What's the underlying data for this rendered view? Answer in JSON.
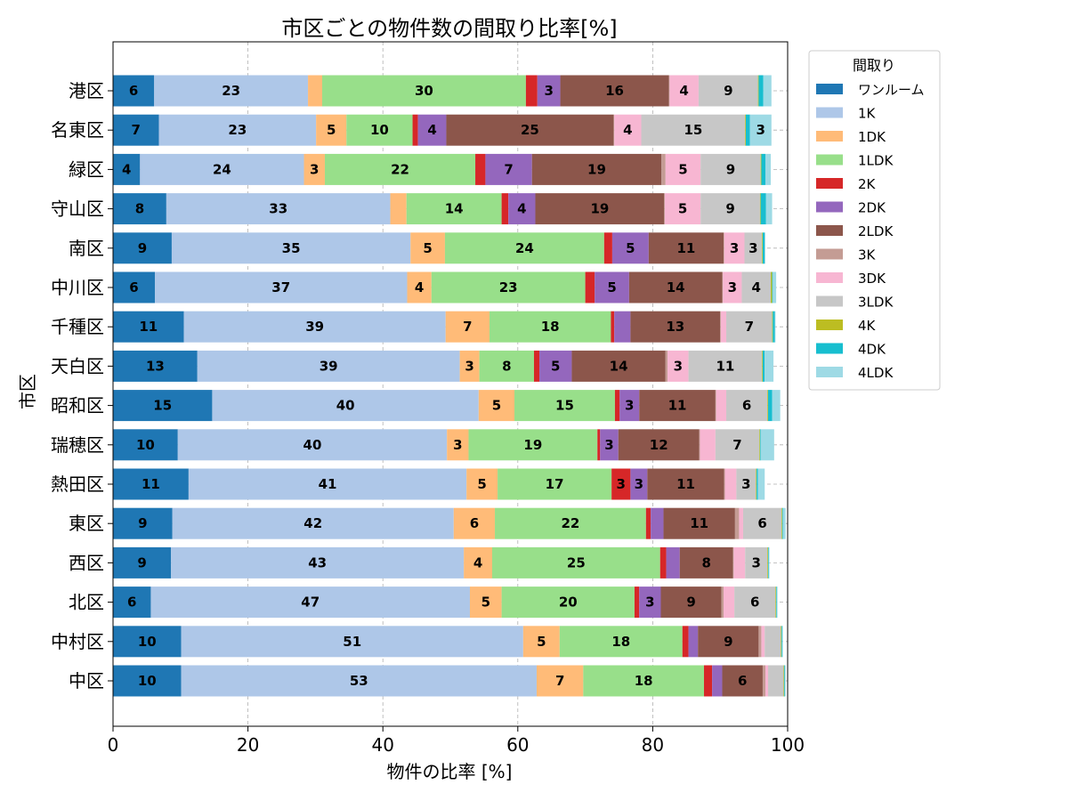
{
  "chart_data": {
    "type": "bar",
    "orientation": "horizontal",
    "stacked": true,
    "title": "市区ごとの物件数の間取り比率[%]",
    "xlabel": "物件の比率 [%]",
    "ylabel": "市区",
    "xlim": [
      0,
      100
    ],
    "x_ticks": [
      "0",
      "20",
      "40",
      "60",
      "80",
      "100"
    ],
    "grid": true,
    "legend": {
      "title": "間取り",
      "placement": "upper-right-outside"
    },
    "categories": [
      "港区",
      "名東区",
      "緑区",
      "守山区",
      "南区",
      "中川区",
      "千種区",
      "天白区",
      "昭和区",
      "瑞穂区",
      "熱田区",
      "東区",
      "西区",
      "北区",
      "中村区",
      "中区"
    ],
    "series": [
      {
        "name": "ワンルーム",
        "color": "#1f77b4",
        "values": [
          6.1,
          6.8,
          4.0,
          7.9,
          8.7,
          6.2,
          10.5,
          12.5,
          14.7,
          9.6,
          11.2,
          8.8,
          8.6,
          5.6,
          10.1,
          10.1
        ]
      },
      {
        "name": "1K",
        "color": "#aec7e8",
        "values": [
          22.8,
          23.3,
          24.3,
          33.2,
          35.4,
          37.4,
          38.8,
          38.9,
          39.5,
          39.9,
          41.2,
          41.7,
          43.4,
          47.3,
          50.7,
          52.7
        ]
      },
      {
        "name": "1DK",
        "color": "#ffbb78",
        "values": [
          2.1,
          4.5,
          3.1,
          2.4,
          5.1,
          3.6,
          6.5,
          2.9,
          5.3,
          3.2,
          4.6,
          6.1,
          4.2,
          4.7,
          5.4,
          6.9
        ]
      },
      {
        "name": "1LDK",
        "color": "#98df8a",
        "values": [
          30.2,
          9.8,
          22.3,
          14.1,
          23.6,
          22.8,
          18.0,
          8.1,
          14.9,
          19.1,
          16.9,
          22.4,
          24.9,
          19.7,
          18.2,
          17.9
        ]
      },
      {
        "name": "2K",
        "color": "#d62728",
        "values": [
          1.7,
          0.8,
          1.5,
          1.0,
          1.2,
          1.4,
          0.5,
          0.8,
          0.7,
          0.4,
          2.8,
          0.7,
          0.9,
          0.7,
          0.9,
          1.2
        ]
      },
      {
        "name": "2DK",
        "color": "#9467bd",
        "values": [
          3.4,
          4.2,
          6.9,
          4.0,
          5.4,
          5.1,
          2.4,
          4.8,
          2.9,
          2.7,
          2.5,
          1.9,
          2.0,
          3.2,
          1.4,
          1.5
        ]
      },
      {
        "name": "2LDK",
        "color": "#8c564b",
        "values": [
          16.1,
          24.8,
          19.2,
          19.1,
          11.1,
          13.8,
          13.3,
          13.9,
          11.3,
          12.0,
          11.4,
          10.6,
          7.9,
          9.0,
          9.0,
          6.0
        ]
      },
      {
        "name": "3K",
        "color": "#c49c94",
        "values": [
          0.1,
          0.1,
          0.6,
          0.1,
          0.1,
          0.1,
          0.1,
          0.3,
          0.1,
          0.1,
          0.1,
          0.6,
          0.1,
          0.3,
          0.4,
          0.4
        ]
      },
      {
        "name": "3DK",
        "color": "#f7b6d2",
        "values": [
          4.3,
          4.0,
          5.2,
          5.3,
          3.0,
          2.8,
          0.8,
          3.1,
          1.5,
          2.3,
          1.7,
          0.6,
          1.7,
          1.6,
          0.5,
          0.4
        ]
      },
      {
        "name": "3LDK",
        "color": "#c7c7c7",
        "values": [
          8.8,
          15.4,
          8.9,
          8.8,
          2.6,
          4.3,
          6.8,
          10.9,
          6.1,
          6.5,
          2.9,
          5.7,
          3.3,
          6.1,
          2.4,
          2.3
        ]
      },
      {
        "name": "4K",
        "color": "#bcbd22",
        "values": [
          0.1,
          0.1,
          0.1,
          0.1,
          0.1,
          0.2,
          0.1,
          0.1,
          0.1,
          0.1,
          0.1,
          0.1,
          0.1,
          0.1,
          0.1,
          0.1
        ]
      },
      {
        "name": "4DK",
        "color": "#17becf",
        "values": [
          0.7,
          0.6,
          0.6,
          0.8,
          0.3,
          0.1,
          0.3,
          0.3,
          0.6,
          0.1,
          0.2,
          0.1,
          0.1,
          0.1,
          0.1,
          0.1
        ]
      },
      {
        "name": "4LDK",
        "color": "#9edae5",
        "values": [
          1.2,
          3.2,
          0.8,
          0.9,
          0.1,
          0.5,
          0.1,
          1.3,
          1.2,
          2.0,
          1.0,
          0.4,
          0.1,
          0.1,
          0.1,
          0.1
        ]
      }
    ]
  }
}
